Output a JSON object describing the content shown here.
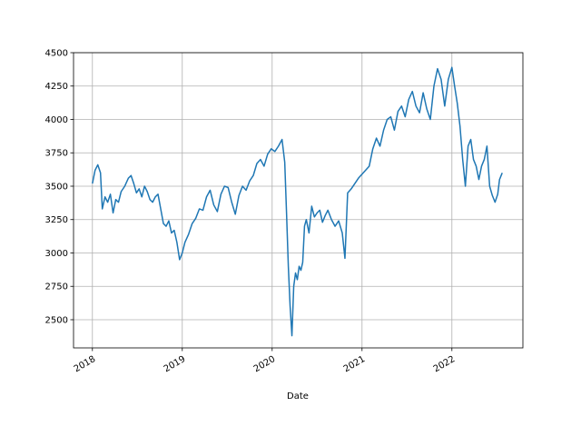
{
  "chart_data": {
    "type": "line",
    "x_label": "Date",
    "color": "#1f77b4",
    "grid": true,
    "x": [
      2018.0,
      2018.03,
      2018.06,
      2018.09,
      2018.11,
      2018.14,
      2018.17,
      2018.2,
      2018.23,
      2018.26,
      2018.29,
      2018.32,
      2018.36,
      2018.4,
      2018.43,
      2018.46,
      2018.49,
      2018.52,
      2018.55,
      2018.58,
      2018.61,
      2018.64,
      2018.67,
      2018.7,
      2018.73,
      2018.76,
      2018.79,
      2018.82,
      2018.85,
      2018.88,
      2018.91,
      2018.94,
      2018.97,
      2019.0,
      2019.03,
      2019.07,
      2019.11,
      2019.15,
      2019.19,
      2019.23,
      2019.27,
      2019.31,
      2019.35,
      2019.39,
      2019.43,
      2019.47,
      2019.51,
      2019.55,
      2019.59,
      2019.63,
      2019.67,
      2019.71,
      2019.75,
      2019.79,
      2019.83,
      2019.87,
      2019.91,
      2019.95,
      2019.99,
      2020.03,
      2020.07,
      2020.11,
      2020.14,
      2020.16,
      2020.18,
      2020.2,
      2020.22,
      2020.24,
      2020.26,
      2020.28,
      2020.3,
      2020.32,
      2020.34,
      2020.36,
      2020.38,
      2020.41,
      2020.44,
      2020.47,
      2020.5,
      2020.53,
      2020.56,
      2020.59,
      2020.62,
      2020.66,
      2020.7,
      2020.74,
      2020.78,
      2020.81,
      2020.84,
      2020.88,
      2020.92,
      2020.96,
      2021.0,
      2021.04,
      2021.08,
      2021.12,
      2021.16,
      2021.2,
      2021.24,
      2021.28,
      2021.32,
      2021.36,
      2021.4,
      2021.44,
      2021.48,
      2021.52,
      2021.56,
      2021.6,
      2021.64,
      2021.68,
      2021.72,
      2021.76,
      2021.8,
      2021.84,
      2021.88,
      2021.92,
      2021.96,
      2022.0,
      2022.03,
      2022.06,
      2022.09,
      2022.12,
      2022.15,
      2022.18,
      2022.21,
      2022.24,
      2022.27,
      2022.3,
      2022.33,
      2022.36,
      2022.39,
      2022.42,
      2022.45,
      2022.48,
      2022.51,
      2022.53,
      2022.56
    ],
    "values": [
      3520,
      3620,
      3660,
      3600,
      3330,
      3420,
      3380,
      3440,
      3300,
      3400,
      3380,
      3460,
      3500,
      3560,
      3580,
      3520,
      3450,
      3480,
      3420,
      3500,
      3460,
      3400,
      3380,
      3420,
      3440,
      3330,
      3220,
      3200,
      3240,
      3150,
      3170,
      3080,
      2950,
      3000,
      3080,
      3140,
      3220,
      3260,
      3330,
      3320,
      3420,
      3470,
      3360,
      3310,
      3440,
      3500,
      3490,
      3380,
      3290,
      3430,
      3500,
      3470,
      3540,
      3580,
      3670,
      3700,
      3650,
      3740,
      3780,
      3760,
      3800,
      3850,
      3680,
      3300,
      2900,
      2600,
      2380,
      2750,
      2850,
      2800,
      2900,
      2870,
      2930,
      3200,
      3250,
      3150,
      3350,
      3270,
      3300,
      3320,
      3230,
      3280,
      3320,
      3250,
      3200,
      3240,
      3150,
      2960,
      3450,
      3480,
      3520,
      3560,
      3590,
      3620,
      3650,
      3780,
      3860,
      3800,
      3920,
      4000,
      4020,
      3920,
      4060,
      4100,
      4020,
      4150,
      4210,
      4100,
      4050,
      4200,
      4080,
      4000,
      4250,
      4380,
      4300,
      4100,
      4300,
      4390,
      4250,
      4120,
      3950,
      3700,
      3500,
      3800,
      3850,
      3700,
      3650,
      3550,
      3650,
      3700,
      3800,
      3500,
      3430,
      3380,
      3440,
      3550,
      3600
    ],
    "xlim": [
      2017.79,
      2022.79
    ],
    "xticks": [
      2018,
      2019,
      2020,
      2021,
      2022
    ],
    "ylim": [
      2289,
      4500
    ],
    "yticks": [
      2500,
      2750,
      3000,
      3250,
      3500,
      3750,
      4000,
      4250,
      4500
    ]
  }
}
